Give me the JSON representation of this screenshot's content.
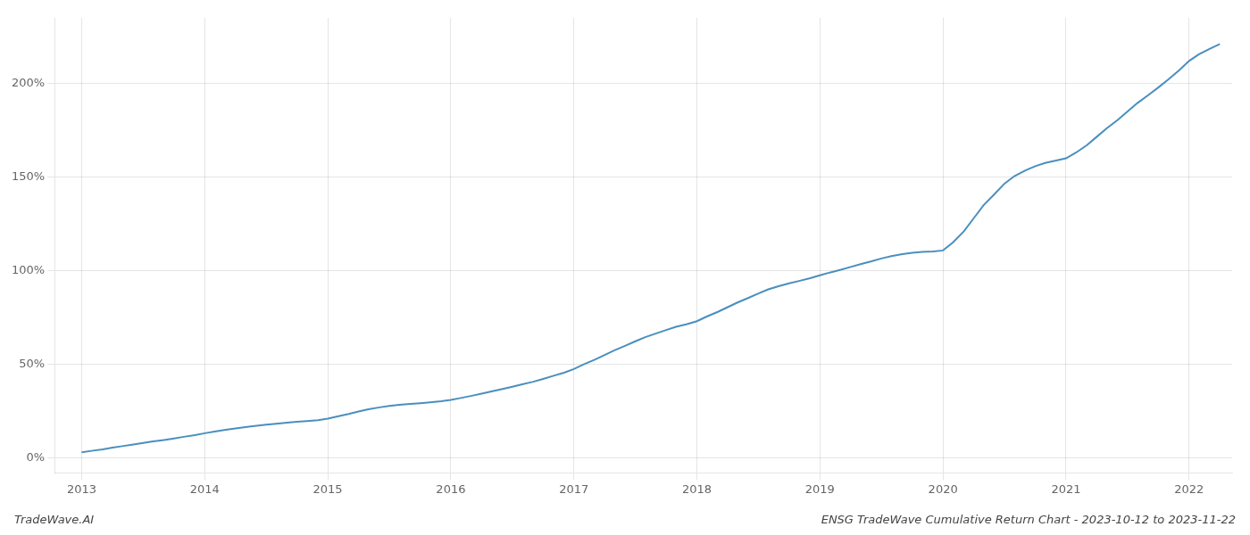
{
  "chart_data": {
    "type": "line",
    "title": "ENSG TradeWave Cumulative Return Chart - 2023-10-12 to 2023-11-22",
    "annotations": [
      {
        "text": "TradeWave.AI"
      }
    ],
    "color": "#4a8fbe",
    "grid": true,
    "xlim": [
      2012.78,
      2022.35
    ],
    "ylim": [
      -8,
      235
    ],
    "xticks": [
      2013,
      2014,
      2015,
      2016,
      2017,
      2018,
      2019,
      2020,
      2021,
      2022
    ],
    "yticks": [
      {
        "value": 0,
        "label": "0%"
      },
      {
        "value": 50,
        "label": "50%"
      },
      {
        "value": 100,
        "label": "100%"
      },
      {
        "value": 150,
        "label": "150%"
      },
      {
        "value": 200,
        "label": "200%"
      }
    ],
    "x": [
      2013.0,
      2013.08,
      2013.17,
      2013.25,
      2013.33,
      2013.42,
      2013.5,
      2013.58,
      2013.67,
      2013.75,
      2013.83,
      2013.92,
      2014.0,
      2014.08,
      2014.17,
      2014.25,
      2014.33,
      2014.42,
      2014.5,
      2014.58,
      2014.67,
      2014.75,
      2014.83,
      2014.92,
      2015.0,
      2015.08,
      2015.17,
      2015.25,
      2015.33,
      2015.42,
      2015.5,
      2015.58,
      2015.67,
      2015.75,
      2015.83,
      2015.92,
      2016.0,
      2016.08,
      2016.17,
      2016.25,
      2016.33,
      2016.42,
      2016.5,
      2016.58,
      2016.67,
      2016.75,
      2016.83,
      2016.92,
      2017.0,
      2017.08,
      2017.17,
      2017.25,
      2017.33,
      2017.42,
      2017.5,
      2017.58,
      2017.67,
      2017.75,
      2017.83,
      2017.92,
      2018.0,
      2018.08,
      2018.17,
      2018.25,
      2018.33,
      2018.42,
      2018.5,
      2018.58,
      2018.67,
      2018.75,
      2018.83,
      2018.92,
      2019.0,
      2019.08,
      2019.17,
      2019.25,
      2019.33,
      2019.42,
      2019.5,
      2019.58,
      2019.67,
      2019.75,
      2019.83,
      2019.92,
      2020.0,
      2020.08,
      2020.17,
      2020.25,
      2020.33,
      2020.42,
      2020.5,
      2020.58,
      2020.67,
      2020.75,
      2020.83,
      2020.92,
      2021.0,
      2021.08,
      2021.17,
      2021.25,
      2021.33,
      2021.42,
      2021.5,
      2021.58,
      2021.67,
      2021.75,
      2021.83,
      2021.92,
      2022.0,
      2022.08,
      2022.17,
      2022.25
    ],
    "values": [
      3.0,
      3.8,
      4.6,
      5.5,
      6.3,
      7.2,
      8.0,
      8.8,
      9.6,
      10.4,
      11.3,
      12.2,
      13.2,
      14.1,
      15.0,
      15.8,
      16.5,
      17.2,
      17.8,
      18.3,
      18.8,
      19.3,
      19.7,
      20.2,
      21.0,
      22.2,
      23.5,
      24.8,
      26.0,
      27.0,
      27.8,
      28.4,
      28.8,
      29.2,
      29.7,
      30.3,
      31.0,
      32.0,
      33.2,
      34.3,
      35.5,
      36.8,
      38.0,
      39.3,
      40.7,
      42.2,
      43.8,
      45.5,
      47.5,
      50.0,
      52.5,
      55.0,
      57.5,
      60.0,
      62.3,
      64.5,
      66.5,
      68.3,
      70.0,
      71.5,
      73.0,
      75.5,
      78.0,
      80.5,
      83.0,
      85.5,
      87.8,
      90.0,
      91.8,
      93.2,
      94.5,
      96.0,
      97.5,
      99.0,
      100.5,
      102.0,
      103.5,
      105.0,
      106.5,
      107.8,
      108.8,
      109.5,
      110.0,
      110.3,
      110.8,
      115.0,
      121.0,
      128.0,
      135.0,
      141.0,
      146.5,
      150.5,
      153.5,
      155.8,
      157.5,
      158.8,
      160.0,
      163.0,
      167.0,
      171.5,
      176.0,
      180.5,
      185.0,
      189.5,
      193.8,
      197.8,
      202.0,
      207.0,
      212.0,
      215.5,
      218.5,
      221.0
    ]
  }
}
